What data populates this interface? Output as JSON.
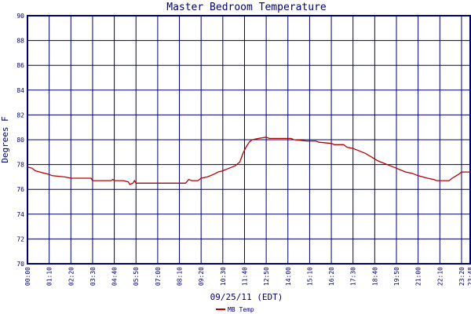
{
  "chart_data": {
    "type": "line",
    "title": "Master Bedroom Temperature",
    "xlabel": "09/25/11 (EDT)",
    "ylabel": "Degrees F",
    "ylim": [
      70,
      90
    ],
    "yticks": [
      "70",
      "72",
      "74",
      "76",
      "78",
      "80",
      "82",
      "84",
      "86",
      "88",
      "90"
    ],
    "xticks": [
      "00:00",
      "01:10",
      "02:20",
      "03:30",
      "04:40",
      "05:50",
      "07:00",
      "08:10",
      "09:20",
      "10:30",
      "11:40",
      "12:50",
      "14:00",
      "15:10",
      "16:20",
      "17:30",
      "18:40",
      "19:50",
      "21:00",
      "22:10",
      "23:20",
      "23:48"
    ],
    "grid": true,
    "legend_position": "bottom-center",
    "colors": {
      "series": "#b40000",
      "grid": "#00006e",
      "text": "#00006e"
    },
    "series": [
      {
        "name": "MB Temp",
        "points": [
          [
            "00:00",
            77.8
          ],
          [
            "00:15",
            77.7
          ],
          [
            "00:25",
            77.5
          ],
          [
            "00:40",
            77.4
          ],
          [
            "00:55",
            77.3
          ],
          [
            "01:10",
            77.2
          ],
          [
            "01:20",
            77.1
          ],
          [
            "02:00",
            77.0
          ],
          [
            "02:20",
            76.9
          ],
          [
            "03:25",
            76.9
          ],
          [
            "03:30",
            76.7
          ],
          [
            "04:30",
            76.7
          ],
          [
            "04:35",
            76.8
          ],
          [
            "04:40",
            76.7
          ],
          [
            "05:10",
            76.7
          ],
          [
            "05:25",
            76.6
          ],
          [
            "05:30",
            76.4
          ],
          [
            "05:40",
            76.5
          ],
          [
            "05:45",
            76.7
          ],
          [
            "05:50",
            76.5
          ],
          [
            "07:00",
            76.5
          ],
          [
            "08:30",
            76.5
          ],
          [
            "08:40",
            76.8
          ],
          [
            "08:50",
            76.7
          ],
          [
            "09:10",
            76.7
          ],
          [
            "09:20",
            76.9
          ],
          [
            "09:40",
            77.0
          ],
          [
            "10:00",
            77.2
          ],
          [
            "10:15",
            77.4
          ],
          [
            "10:30",
            77.5
          ],
          [
            "10:50",
            77.7
          ],
          [
            "11:10",
            77.9
          ],
          [
            "11:25",
            78.2
          ],
          [
            "11:35",
            78.9
          ],
          [
            "11:45",
            79.4
          ],
          [
            "11:55",
            79.8
          ],
          [
            "12:05",
            80.0
          ],
          [
            "12:25",
            80.1
          ],
          [
            "12:50",
            80.2
          ],
          [
            "13:00",
            80.1
          ],
          [
            "14:10",
            80.1
          ],
          [
            "14:20",
            80.0
          ],
          [
            "15:00",
            79.9
          ],
          [
            "15:30",
            79.9
          ],
          [
            "15:40",
            79.8
          ],
          [
            "16:20",
            79.7
          ],
          [
            "16:30",
            79.6
          ],
          [
            "17:00",
            79.6
          ],
          [
            "17:10",
            79.4
          ],
          [
            "17:30",
            79.3
          ],
          [
            "17:50",
            79.1
          ],
          [
            "18:10",
            78.9
          ],
          [
            "18:30",
            78.6
          ],
          [
            "18:50",
            78.3
          ],
          [
            "19:10",
            78.1
          ],
          [
            "19:30",
            77.9
          ],
          [
            "19:50",
            77.7
          ],
          [
            "20:20",
            77.4
          ],
          [
            "20:40",
            77.3
          ],
          [
            "21:00",
            77.1
          ],
          [
            "21:30",
            76.9
          ],
          [
            "21:50",
            76.8
          ],
          [
            "22:00",
            76.7
          ],
          [
            "22:40",
            76.7
          ],
          [
            "22:50",
            76.9
          ],
          [
            "23:10",
            77.2
          ],
          [
            "23:20",
            77.4
          ],
          [
            "23:48",
            77.4
          ]
        ]
      }
    ]
  }
}
